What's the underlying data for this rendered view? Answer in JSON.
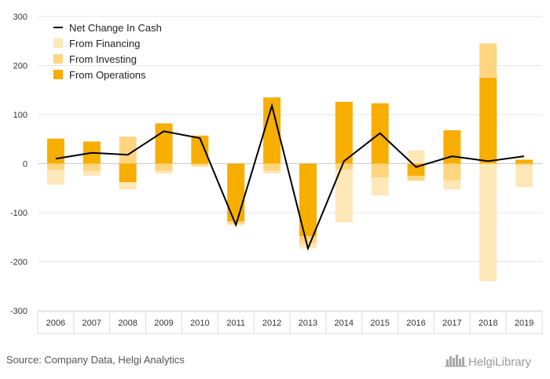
{
  "chart_data": {
    "type": "bar",
    "title": "",
    "xlabel": "",
    "ylabel": "",
    "ylim": [
      -300,
      300
    ],
    "yticks": [
      300,
      200,
      100,
      0,
      -100,
      -200,
      -300
    ],
    "grid": "horizontal",
    "legend_placement": "top-left",
    "categories": [
      "2006",
      "2007",
      "2008",
      "2009",
      "2010",
      "2011",
      "2012",
      "2013",
      "2014",
      "2015",
      "2016",
      "2017",
      "2018",
      "2019"
    ],
    "series": [
      {
        "name": "From Operations",
        "color": "#F7AE00",
        "values": [
          51,
          45,
          -38,
          82,
          57,
          -118,
          135,
          -148,
          126,
          123,
          -25,
          68,
          175,
          8
        ]
      },
      {
        "name": "From Investing",
        "color": "#FFD580",
        "values": [
          -13,
          -15,
          55,
          -15,
          -4,
          -5,
          -15,
          -15,
          -12,
          -28,
          -10,
          -35,
          70,
          -3
        ]
      },
      {
        "name": "From Financing",
        "color": "#FFE8B8",
        "values": [
          -30,
          -10,
          -15,
          -5,
          -3,
          -3,
          -5,
          -10,
          -108,
          -37,
          27,
          -18,
          -240,
          -45
        ]
      }
    ],
    "line_series": {
      "name": "Net Change In Cash",
      "color": "#000000",
      "values": [
        10,
        22,
        18,
        66,
        52,
        -125,
        118,
        -173,
        5,
        62,
        -7,
        15,
        5,
        15
      ]
    },
    "legend_entries": [
      "Net Change In Cash",
      "From Financing",
      "From Investing",
      "From Operations"
    ]
  },
  "footer": {
    "source": "Source: Company Data, Helgi Analytics",
    "logo": "HelgiLibrary"
  }
}
